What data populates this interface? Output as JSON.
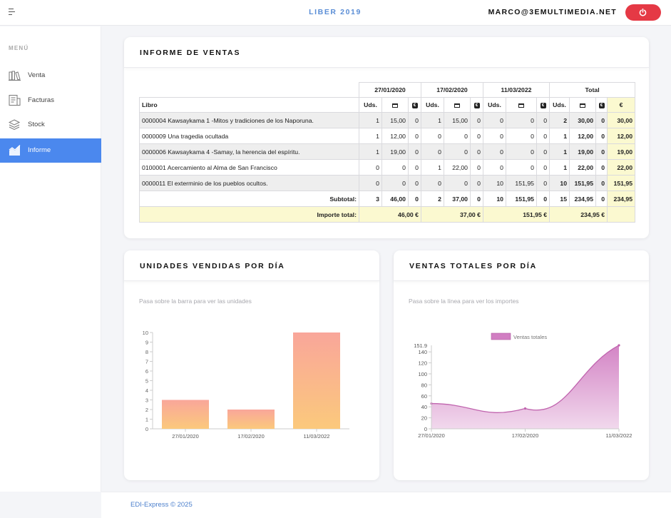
{
  "header": {
    "app_title": "LIBER 2019",
    "user_email": "MARCO@3EMULTIMEDIA.NET",
    "power_icon": "power-icon",
    "accent": "#e53945"
  },
  "sidebar": {
    "heading": "MENÚ",
    "items": [
      {
        "label": "Venta",
        "icon": "books-icon"
      },
      {
        "label": "Facturas",
        "icon": "invoice-icon"
      },
      {
        "label": "Stock",
        "icon": "layers-icon"
      },
      {
        "label": "Informe",
        "icon": "chart-icon",
        "active": true
      }
    ],
    "active_color": "#4b88ee"
  },
  "sales_report": {
    "title": "INFORME DE VENTAS",
    "book_header": "Libro",
    "dates": [
      "27/01/2020",
      "17/02/2020",
      "11/03/2022"
    ],
    "total_header": "Total",
    "units_header": "Uds.",
    "euro_header": "€",
    "rows": [
      {
        "book": "0000004 Kawsaykama 1 -Mitos y tradiciones de los Naporuna.",
        "cells": [
          [
            "1",
            "15,00",
            "0"
          ],
          [
            "1",
            "15,00",
            "0"
          ],
          [
            "0",
            "0",
            "0"
          ]
        ],
        "total": [
          "2",
          "30,00",
          "0",
          "30,00"
        ]
      },
      {
        "book": "0000009 Una tragedia ocultada",
        "cells": [
          [
            "1",
            "12,00",
            "0"
          ],
          [
            "0",
            "0",
            "0"
          ],
          [
            "0",
            "0",
            "0"
          ]
        ],
        "total": [
          "1",
          "12,00",
          "0",
          "12,00"
        ]
      },
      {
        "book": "0000006 Kawsaykama 4 -Samay, la herencia del espíritu.",
        "cells": [
          [
            "1",
            "19,00",
            "0"
          ],
          [
            "0",
            "0",
            "0"
          ],
          [
            "0",
            "0",
            "0"
          ]
        ],
        "total": [
          "1",
          "19,00",
          "0",
          "19,00"
        ]
      },
      {
        "book": "0100001 Acercamiento al Alma de San Francisco",
        "cells": [
          [
            "0",
            "0",
            "0"
          ],
          [
            "1",
            "22,00",
            "0"
          ],
          [
            "0",
            "0",
            "0"
          ]
        ],
        "total": [
          "1",
          "22,00",
          "0",
          "22,00"
        ]
      },
      {
        "book": "0000011 El exterminio de los pueblos ocultos.",
        "cells": [
          [
            "0",
            "0",
            "0"
          ],
          [
            "0",
            "0",
            "0"
          ],
          [
            "10",
            "151,95",
            "0"
          ]
        ],
        "total": [
          "10",
          "151,95",
          "0",
          "151,95"
        ]
      }
    ],
    "subtotal_label": "Subtotal:",
    "subtotal": {
      "cells": [
        [
          "3",
          "46,00",
          "0"
        ],
        [
          "2",
          "37,00",
          "0"
        ],
        [
          "10",
          "151,95",
          "0"
        ]
      ],
      "total": [
        "15",
        "234,95",
        "0",
        "234,95"
      ]
    },
    "import_label": "Importe total:",
    "import_totals": [
      "46,00 €",
      "37,00 €",
      "151,95 €",
      "234,95 €"
    ]
  },
  "units_chart": {
    "title": "UNIDADES VENDIDAS POR DÍA",
    "hint": "Pasa sobre la barra para ver las unidades"
  },
  "sales_chart": {
    "title": "VENTAS TOTALES POR DÍA",
    "hint": "Pasa sobre la línea para ver los importes"
  },
  "chart_data": [
    {
      "type": "bar",
      "categories": [
        "27/01/2020",
        "17/02/2020",
        "11/03/2022"
      ],
      "values": [
        3,
        2,
        10
      ],
      "ylim": [
        0,
        10
      ],
      "yticks": [
        0,
        1,
        2,
        3,
        4,
        5,
        6,
        7,
        8,
        9,
        10
      ],
      "colors": {
        "top": "#f9a69a",
        "bottom": "#fbc97c"
      },
      "grid": false
    },
    {
      "type": "area",
      "categories": [
        "27/01/2020",
        "17/02/2020",
        "11/03/2022"
      ],
      "series": [
        {
          "name": "Ventas totales",
          "values": [
            46,
            37,
            151.95
          ],
          "color": "#d17ec2"
        }
      ],
      "ylim": [
        0,
        151.9
      ],
      "yticks": [
        0,
        20,
        40,
        60,
        80,
        100,
        120,
        140
      ],
      "ymax_label": "151.9",
      "legend": "top-center",
      "grid": false
    }
  ],
  "footer": {
    "text": "EDI-Express © 2025"
  }
}
